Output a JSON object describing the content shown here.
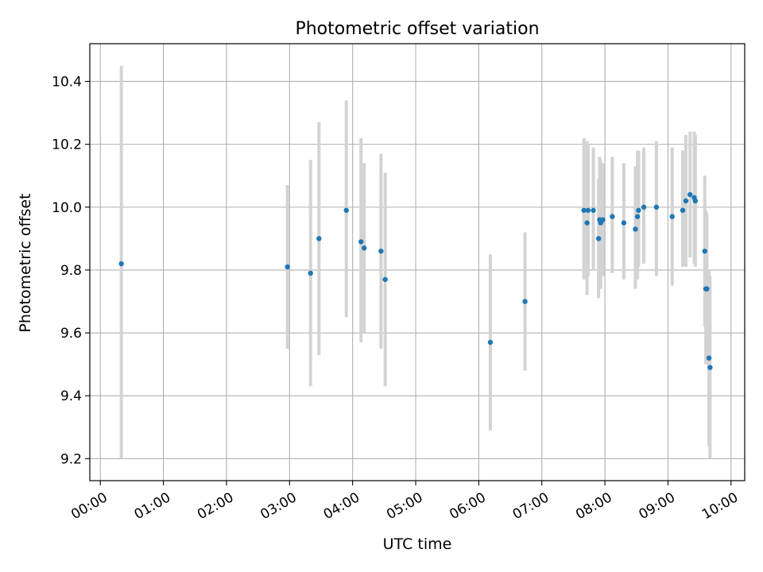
{
  "chart_data": {
    "type": "scatter",
    "title": "Photometric offset variation",
    "xlabel": "UTC time",
    "ylabel": "Photometric offset",
    "x_unit": "hours",
    "xlim": [
      "23:50",
      "10:13"
    ],
    "ylim": [
      9.13,
      10.52
    ],
    "x_ticks": [
      "00:00",
      "01:00",
      "02:00",
      "03:00",
      "04:00",
      "05:00",
      "06:00",
      "07:00",
      "08:00",
      "09:00",
      "10:00"
    ],
    "y_ticks": [
      "9.2",
      "9.4",
      "9.6",
      "9.8",
      "10.0",
      "10.2",
      "10.4"
    ],
    "grid": true,
    "colors": {
      "point": "#1f77b4",
      "errorbar": "#d3d3d3",
      "grid": "#b0b0b0"
    },
    "points": [
      {
        "t": "00:20",
        "y": 9.82,
        "lo": 9.2,
        "hi": 10.45
      },
      {
        "t": "02:58",
        "y": 9.81,
        "lo": 9.55,
        "hi": 10.07
      },
      {
        "t": "03:20",
        "y": 9.79,
        "lo": 9.43,
        "hi": 10.15
      },
      {
        "t": "03:28",
        "y": 9.9,
        "lo": 9.53,
        "hi": 10.27
      },
      {
        "t": "03:54",
        "y": 9.99,
        "lo": 9.65,
        "hi": 10.34
      },
      {
        "t": "04:08",
        "y": 9.89,
        "lo": 9.57,
        "hi": 10.22
      },
      {
        "t": "04:11",
        "y": 9.87,
        "lo": 9.6,
        "hi": 10.14
      },
      {
        "t": "04:27",
        "y": 9.86,
        "lo": 9.55,
        "hi": 10.17
      },
      {
        "t": "04:31",
        "y": 9.77,
        "lo": 9.43,
        "hi": 10.11
      },
      {
        "t": "06:11",
        "y": 9.57,
        "lo": 9.29,
        "hi": 9.85
      },
      {
        "t": "06:44",
        "y": 9.7,
        "lo": 9.48,
        "hi": 9.92
      },
      {
        "t": "07:40",
        "y": 9.99,
        "lo": 9.77,
        "hi": 10.22
      },
      {
        "t": "07:43",
        "y": 9.95,
        "lo": 9.72,
        "hi": 10.21
      },
      {
        "t": "07:44",
        "y": 9.99,
        "lo": 9.78,
        "hi": 10.2
      },
      {
        "t": "07:49",
        "y": 9.99,
        "lo": 9.8,
        "hi": 10.19
      },
      {
        "t": "07:54",
        "y": 9.9,
        "lo": 9.71,
        "hi": 10.09
      },
      {
        "t": "07:55",
        "y": 9.96,
        "lo": 9.76,
        "hi": 10.16
      },
      {
        "t": "07:56",
        "y": 9.95,
        "lo": 9.74,
        "hi": 10.15
      },
      {
        "t": "07:58",
        "y": 9.96,
        "lo": 9.78,
        "hi": 10.14
      },
      {
        "t": "08:07",
        "y": 9.97,
        "lo": 9.79,
        "hi": 10.16
      },
      {
        "t": "08:18",
        "y": 9.95,
        "lo": 9.77,
        "hi": 10.14
      },
      {
        "t": "08:29",
        "y": 9.93,
        "lo": 9.74,
        "hi": 10.13
      },
      {
        "t": "08:31",
        "y": 9.97,
        "lo": 9.77,
        "hi": 10.18
      },
      {
        "t": "08:32",
        "y": 9.99,
        "lo": 9.81,
        "hi": 10.18
      },
      {
        "t": "08:37",
        "y": 10.0,
        "lo": 9.82,
        "hi": 10.19
      },
      {
        "t": "08:49",
        "y": 10.0,
        "lo": 9.78,
        "hi": 10.21
      },
      {
        "t": "09:04",
        "y": 9.97,
        "lo": 9.75,
        "hi": 10.19
      },
      {
        "t": "09:14",
        "y": 9.99,
        "lo": 9.81,
        "hi": 10.18
      },
      {
        "t": "09:17",
        "y": 10.02,
        "lo": 9.81,
        "hi": 10.23
      },
      {
        "t": "09:21",
        "y": 10.04,
        "lo": 9.84,
        "hi": 10.24
      },
      {
        "t": "09:25",
        "y": 10.03,
        "lo": 9.82,
        "hi": 10.24
      },
      {
        "t": "09:26",
        "y": 10.02,
        "lo": 9.81,
        "hi": 10.23
      },
      {
        "t": "09:35",
        "y": 9.86,
        "lo": 9.62,
        "hi": 10.1
      },
      {
        "t": "09:36",
        "y": 9.74,
        "lo": 9.5,
        "hi": 9.99
      },
      {
        "t": "09:37",
        "y": 9.74,
        "lo": 9.5,
        "hi": 9.98
      },
      {
        "t": "09:39",
        "y": 9.52,
        "lo": 9.24,
        "hi": 9.8
      },
      {
        "t": "09:40",
        "y": 9.49,
        "lo": 9.2,
        "hi": 9.78
      }
    ]
  }
}
